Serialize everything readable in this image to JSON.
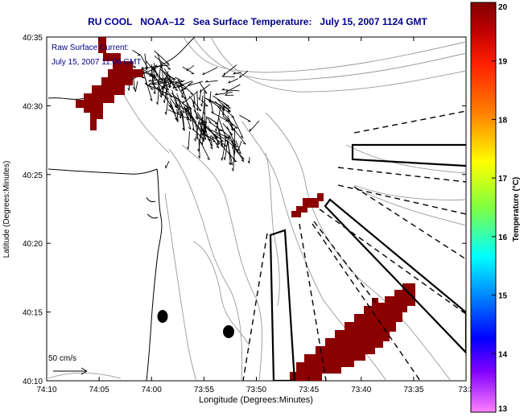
{
  "title": "RU COOL   NOAA–12   Sea Surface Temperature:   July 15, 2007 1124 GMT",
  "annotation": {
    "line1": "Raw Surface Current:",
    "line2": "July 15, 2007 11:00 GMT"
  },
  "scale_label": "50 cm/s",
  "axes": {
    "xlabel": "Longitude (Degrees:Minutes)",
    "ylabel": "Latitude (Degrees:Minutes)",
    "x_ticks": [
      "74:10",
      "74:05",
      "74:00",
      "73:55",
      "73:50",
      "73:45",
      "73:40",
      "73:35",
      "73:3"
    ],
    "y_ticks": [
      "40:35",
      "40:30",
      "40:25",
      "40:20",
      "40:15",
      "40:10"
    ]
  },
  "colorbar": {
    "label": "Temperature (°C)",
    "ticks": [
      "20",
      "19",
      "18",
      "17",
      "16",
      "15",
      "14",
      "13"
    ],
    "min": 13,
    "max": 20
  },
  "colors": {
    "title": "#00008b",
    "annotation": "#00008b",
    "sst_patch": "#8b0000",
    "contour": "#999999",
    "coast": "#000000"
  }
}
